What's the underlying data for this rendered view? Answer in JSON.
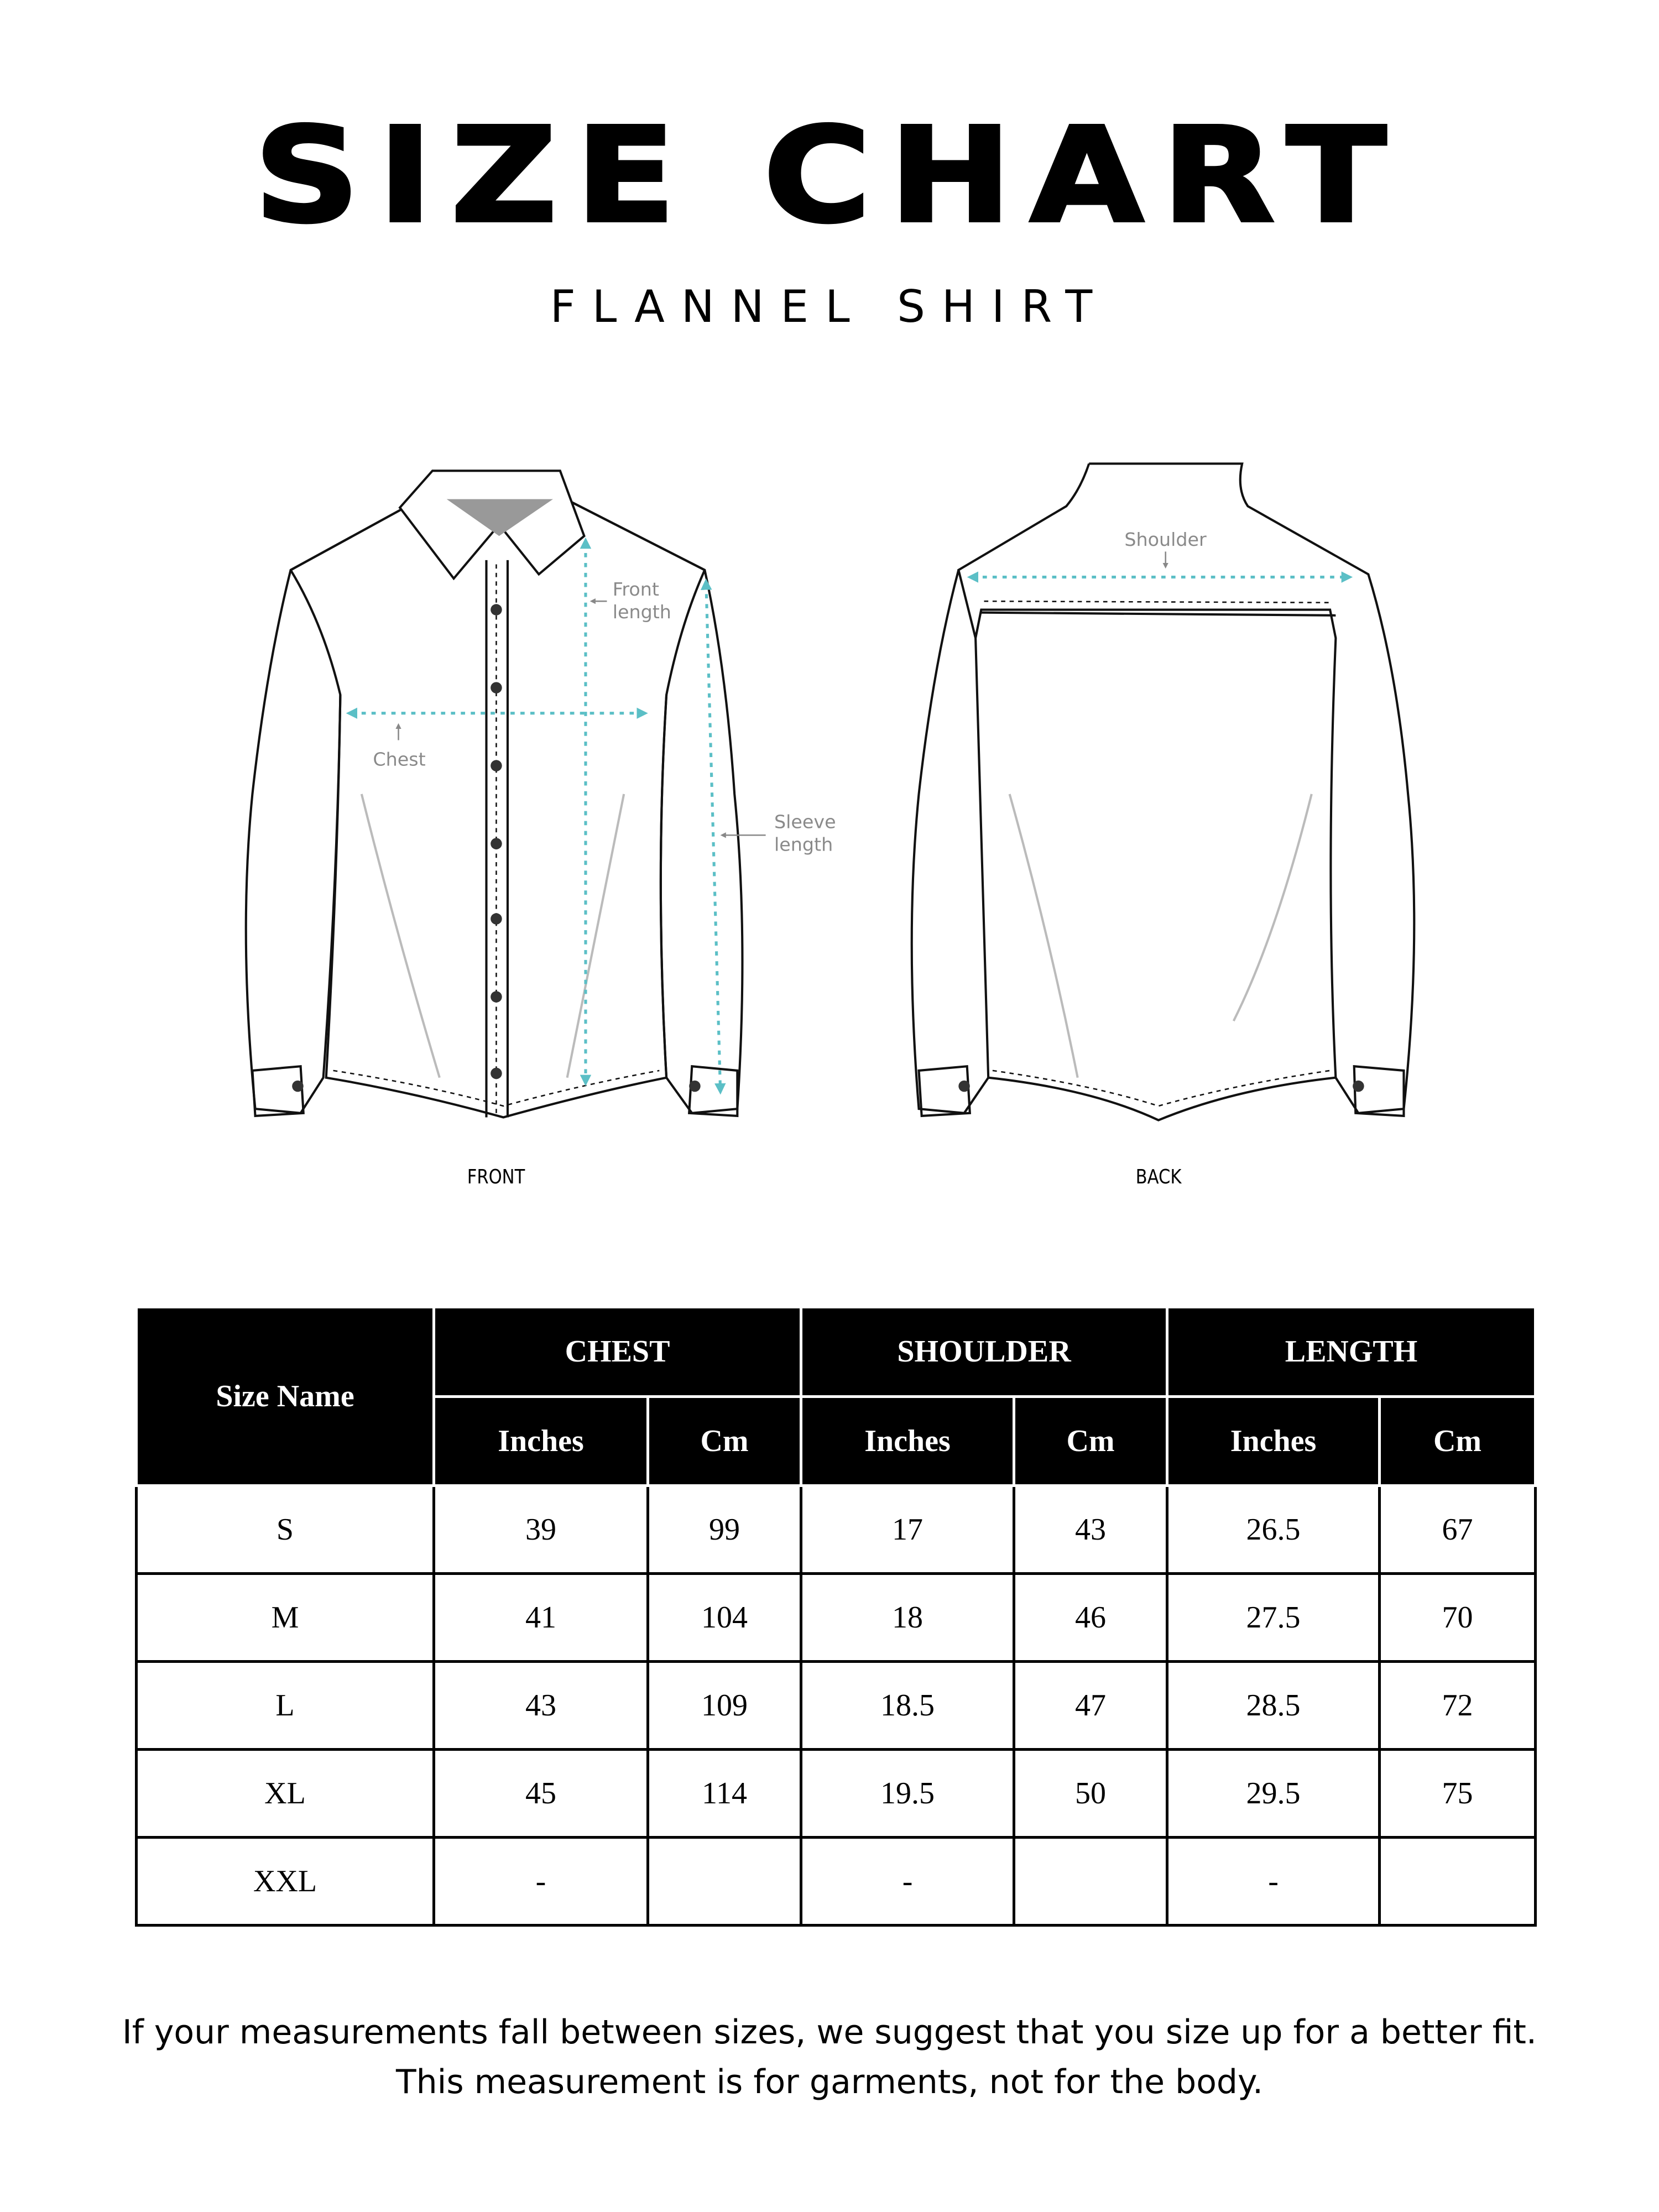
{
  "header": {
    "title": "SIZE CHART",
    "subtitle": "FLANNEL SHIRT"
  },
  "illustration": {
    "front_label": "FRONT",
    "back_label": "BACK",
    "annotations": {
      "front_length": [
        "Front",
        "length"
      ],
      "chest": "Chest",
      "sleeve_length": [
        "Sleeve",
        "length"
      ],
      "shoulder": "Shoulder"
    },
    "accent_color": "#5bbfc6"
  },
  "table": {
    "size_header": "Size Name",
    "groups": [
      "CHEST",
      "SHOULDER",
      "LENGTH"
    ],
    "units": [
      "Inches",
      "Cm",
      "Inches",
      "Cm",
      "Inches",
      "Cm"
    ],
    "rows": [
      {
        "size": "S",
        "values": [
          "39",
          "99",
          "17",
          "43",
          "26.5",
          "67"
        ]
      },
      {
        "size": "M",
        "values": [
          "41",
          "104",
          "18",
          "46",
          "27.5",
          "70"
        ]
      },
      {
        "size": "L",
        "values": [
          "43",
          "109",
          "18.5",
          "47",
          "28.5",
          "72"
        ]
      },
      {
        "size": "XL",
        "values": [
          "45",
          "114",
          "19.5",
          "50",
          "29.5",
          "75"
        ]
      },
      {
        "size": "XXL",
        "values": [
          "-",
          "",
          "-",
          "",
          "-",
          ""
        ]
      }
    ]
  },
  "footer": {
    "line1": "If your measurements fall between sizes, we suggest that you size up for a better fit.",
    "line2": "This measurement is for garments, not for the body."
  }
}
